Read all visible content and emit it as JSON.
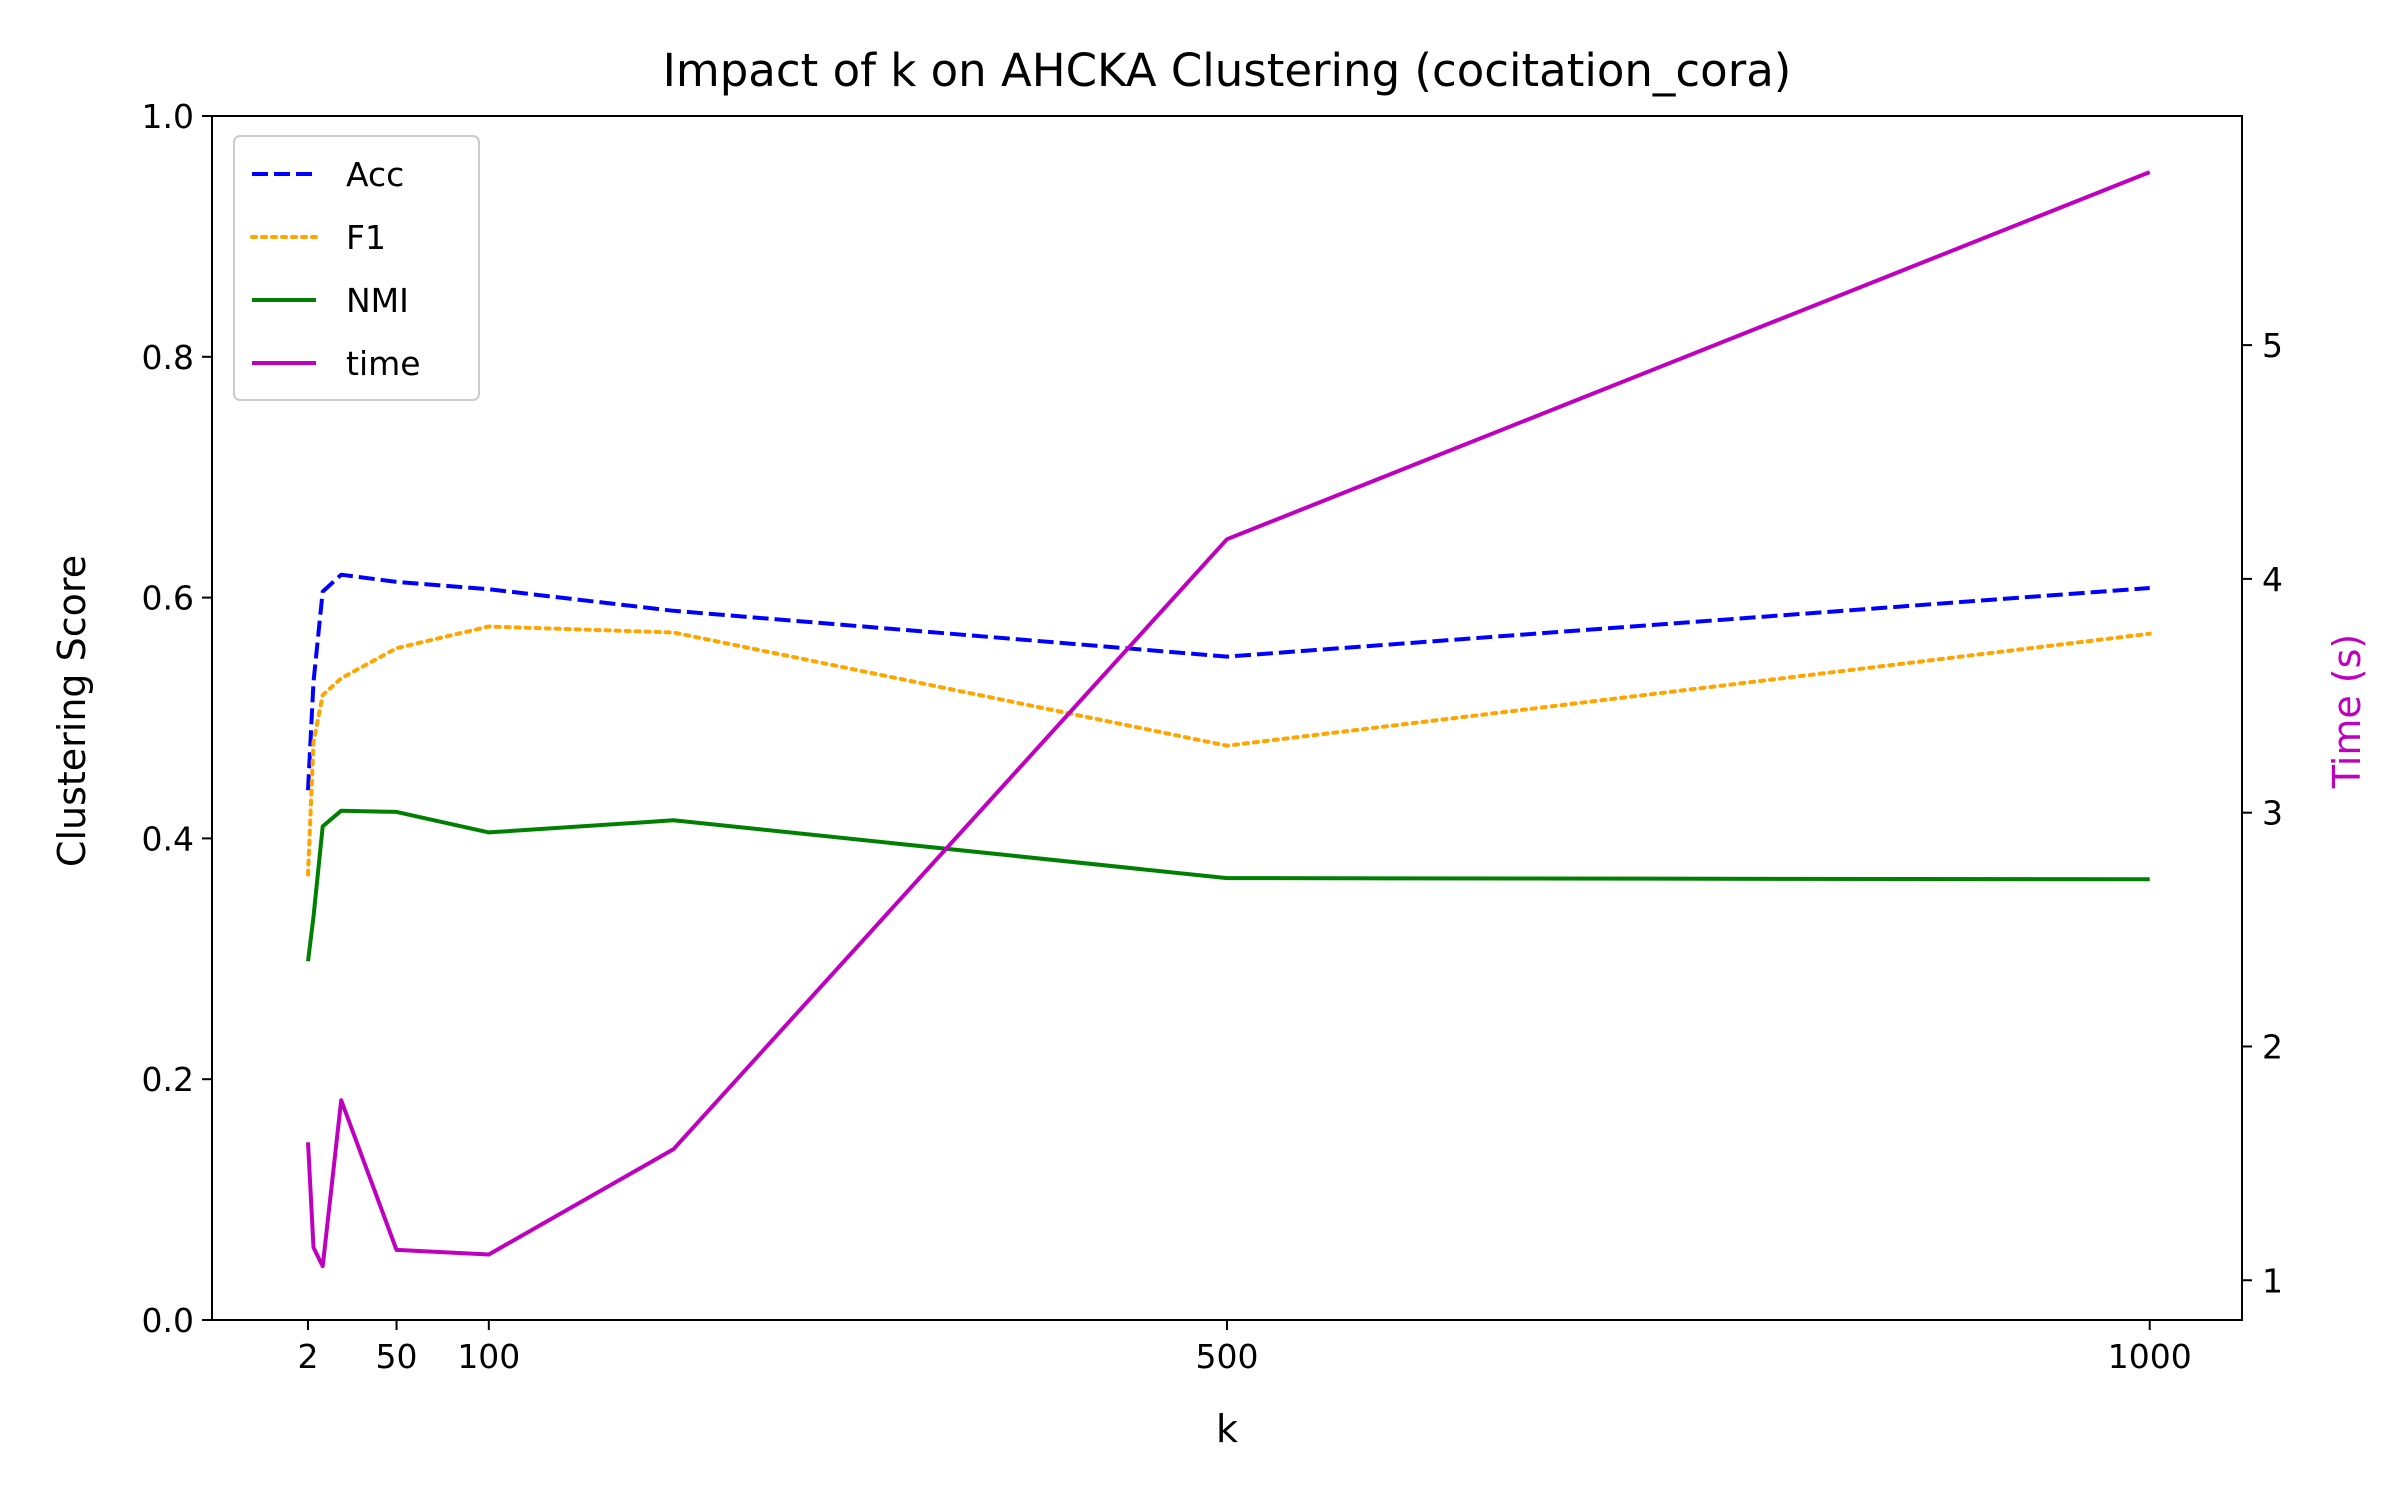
{
  "chart_data": {
    "type": "line",
    "title": "Impact of k on AHCKA Clustering (cocitation_cora)",
    "xlabel": "k",
    "ylabel": "Clustering Score",
    "y2label": "Time (s)",
    "xlim": [
      -50,
      1050
    ],
    "ylim": [
      0,
      1.0
    ],
    "y2lim": [
      0.83,
      5.98
    ],
    "xticks": [
      2,
      50,
      100,
      500,
      1000
    ],
    "yticks": [
      0.0,
      0.2,
      0.4,
      0.6,
      0.8,
      1.0
    ],
    "y2ticks": [
      1,
      2,
      3,
      4,
      5
    ],
    "grid": false,
    "legend_position": "top-left",
    "series": [
      {
        "name": "Acc",
        "axis": "left",
        "style": "dashed",
        "color": "#0000ff",
        "x": [
          2,
          5,
          10,
          20,
          50,
          100,
          200,
          500,
          1000
        ],
        "values": [
          0.44,
          0.53,
          0.605,
          0.619,
          0.613,
          0.607,
          0.589,
          0.551,
          0.608
        ]
      },
      {
        "name": "F1",
        "axis": "left",
        "style": "dotted",
        "color": "#ffa500",
        "x": [
          2,
          5,
          10,
          20,
          50,
          100,
          200,
          500,
          1000
        ],
        "values": [
          0.37,
          0.48,
          0.519,
          0.533,
          0.558,
          0.576,
          0.571,
          0.477,
          0.57
        ]
      },
      {
        "name": "NMI",
        "axis": "left",
        "style": "solid",
        "color": "#008000",
        "x": [
          2,
          5,
          10,
          20,
          50,
          100,
          200,
          500,
          1000
        ],
        "values": [
          0.298,
          0.335,
          0.41,
          0.423,
          0.422,
          0.405,
          0.415,
          0.367,
          0.366
        ]
      },
      {
        "name": "time",
        "axis": "right",
        "style": "solid",
        "color": "#bf00bf",
        "x": [
          2,
          5,
          10,
          20,
          50,
          100,
          200,
          500,
          1000
        ],
        "values": [
          1.59,
          1.14,
          1.06,
          1.77,
          1.13,
          1.11,
          1.56,
          4.17,
          5.74
        ]
      }
    ]
  }
}
